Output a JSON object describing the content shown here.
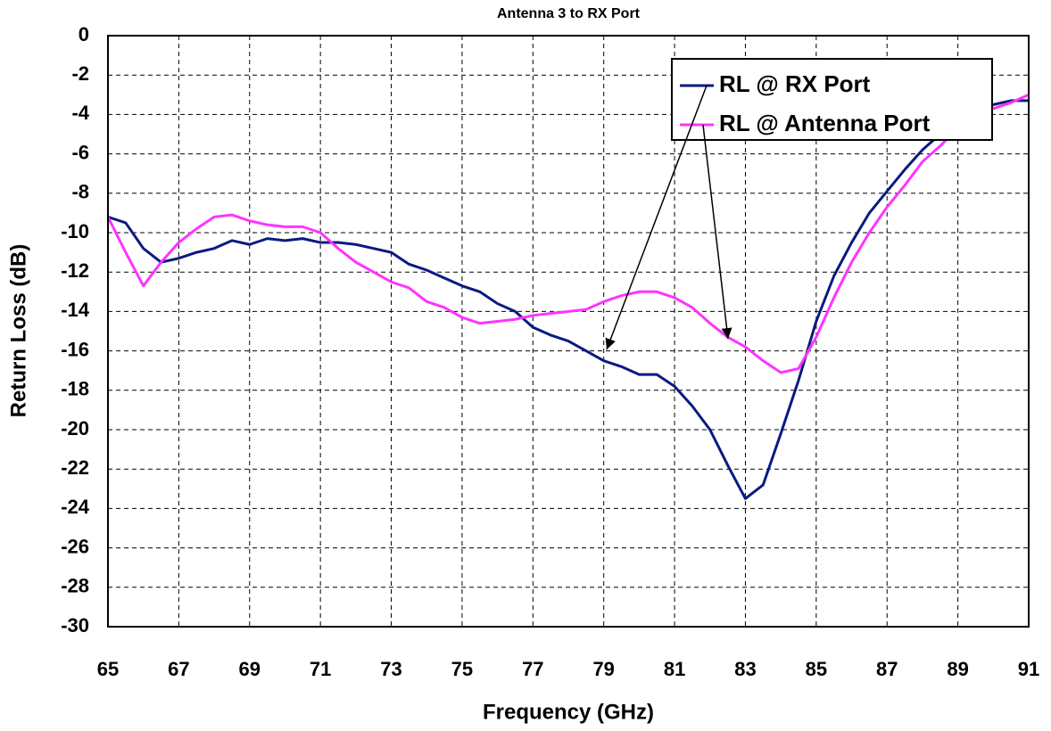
{
  "chart_data": {
    "type": "line",
    "title": "Antenna 3 to RX Port",
    "xlabel": "Frequency (GHz)",
    "ylabel": "Return Loss (dB)",
    "x": [
      65,
      65.5,
      66,
      66.5,
      67,
      67.5,
      68,
      68.5,
      69,
      69.5,
      70,
      70.5,
      71,
      71.5,
      72,
      72.5,
      73,
      73.5,
      74,
      74.5,
      75,
      75.5,
      76,
      76.5,
      77,
      77.5,
      78,
      78.5,
      79,
      79.5,
      80,
      80.5,
      81,
      81.5,
      82,
      82.5,
      83,
      83.5,
      84,
      84.5,
      85,
      85.5,
      86,
      86.5,
      87,
      87.5,
      88,
      88.5,
      89,
      89.5,
      90,
      90.5,
      91
    ],
    "series": [
      {
        "name": "RL @ RX Port",
        "color": "#0a1a80",
        "values": [
          -9.2,
          -9.5,
          -10.8,
          -11.5,
          -11.3,
          -11.0,
          -10.8,
          -10.4,
          -10.6,
          -10.3,
          -10.4,
          -10.3,
          -10.5,
          -10.5,
          -10.6,
          -10.8,
          -11.0,
          -11.6,
          -11.9,
          -12.3,
          -12.7,
          -13.0,
          -13.6,
          -14.0,
          -14.8,
          -15.2,
          -15.5,
          -16.0,
          -16.5,
          -16.8,
          -17.2,
          -17.2,
          -17.8,
          -18.8,
          -20.0,
          -21.8,
          -23.5,
          -22.8,
          -20.2,
          -17.5,
          -14.5,
          -12.2,
          -10.5,
          -9.0,
          -7.9,
          -6.8,
          -5.8,
          -5.0,
          -4.3,
          -3.8,
          -3.5,
          -3.3,
          -3.3
        ]
      },
      {
        "name": "RL @ Antenna Port",
        "color": "#ff33ff",
        "values": [
          -9.2,
          -11.0,
          -12.7,
          -11.5,
          -10.5,
          -9.8,
          -9.2,
          -9.1,
          -9.4,
          -9.6,
          -9.7,
          -9.7,
          -10.0,
          -10.8,
          -11.5,
          -12.0,
          -12.5,
          -12.8,
          -13.5,
          -13.8,
          -14.3,
          -14.6,
          -14.5,
          -14.4,
          -14.2,
          -14.1,
          -14.0,
          -13.9,
          -13.5,
          -13.2,
          -13.0,
          -13.0,
          -13.3,
          -13.8,
          -14.6,
          -15.3,
          -15.8,
          -16.5,
          -17.1,
          -16.9,
          -15.3,
          -13.3,
          -11.5,
          -10.0,
          -8.7,
          -7.6,
          -6.4,
          -5.6,
          -4.7,
          -4.1,
          -3.7,
          -3.4,
          -3.0
        ]
      }
    ],
    "xlim": [
      65,
      91
    ],
    "xticks": [
      65,
      67,
      69,
      71,
      73,
      75,
      77,
      79,
      81,
      83,
      85,
      87,
      89,
      91
    ],
    "ylim": [
      -30,
      0
    ],
    "yticks": [
      0,
      -2,
      -4,
      -6,
      -8,
      -10,
      -12,
      -14,
      -16,
      -18,
      -20,
      -22,
      -24,
      -26,
      -28,
      -30
    ],
    "grid": true
  }
}
